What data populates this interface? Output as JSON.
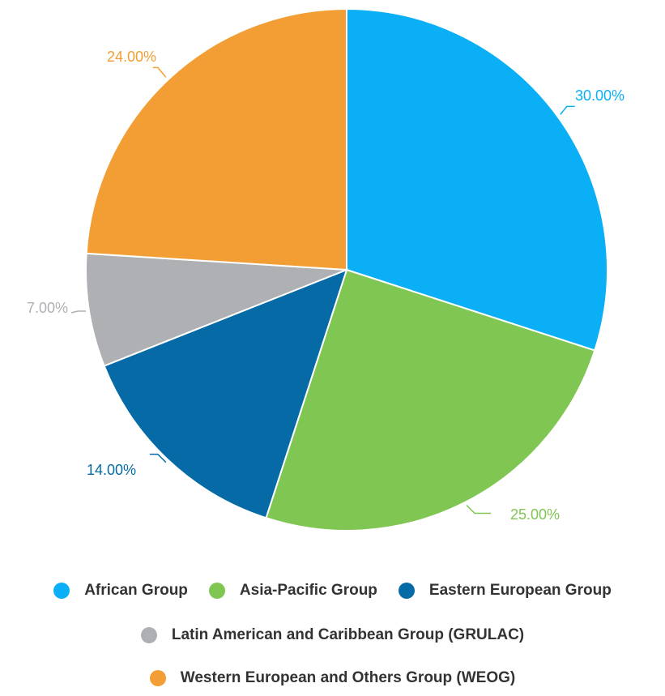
{
  "chart_data": {
    "type": "pie",
    "title": "",
    "slices": [
      {
        "label": "African Group",
        "value": 30.0,
        "display": "30.00%",
        "color": "#0aaff5"
      },
      {
        "label": "Asia-Pacific Group",
        "value": 25.0,
        "display": "25.00%",
        "color": "#80c653"
      },
      {
        "label": "Eastern European Group",
        "value": 14.0,
        "display": "14.00%",
        "color": "#056aa6"
      },
      {
        "label": "Latin American and Caribbean Group (GRULAC)",
        "value": 7.0,
        "display": "7.00%",
        "color": "#aeb0b3"
      },
      {
        "label": "Western European and Others Group (WEOG)",
        "value": 24.0,
        "display": "24.00%",
        "color": "#f39e34"
      }
    ],
    "start_angle": "12 o'clock",
    "direction": "clockwise",
    "legend_position": "bottom"
  }
}
